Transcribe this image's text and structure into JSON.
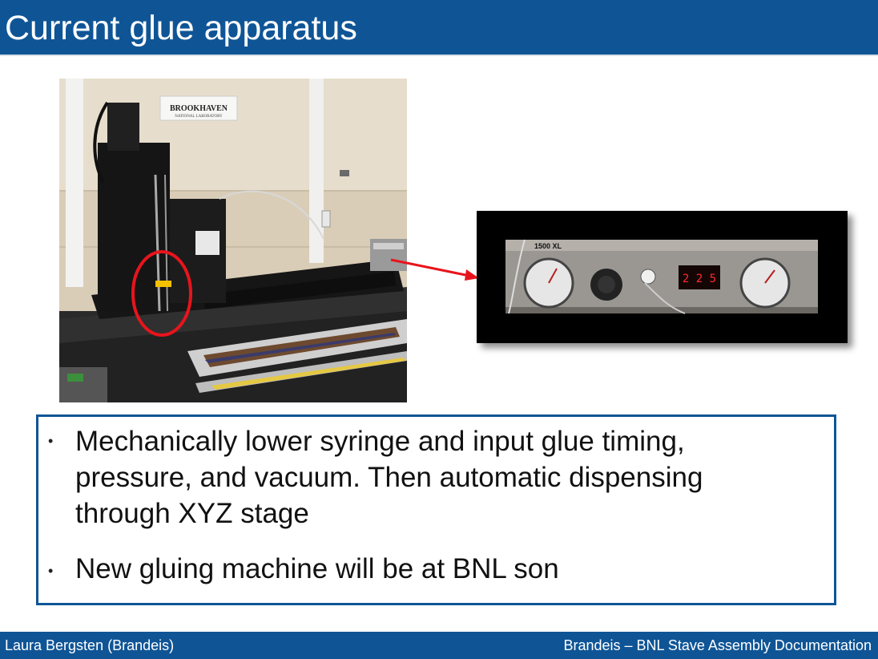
{
  "slide": {
    "title": "Current glue apparatus"
  },
  "images": {
    "main_photo_sign": "BROOKHAVEN",
    "main_photo_sign_sub": "NATIONAL LABORATORY",
    "controller_model": "1500 XL",
    "controller_display": "2 2 5"
  },
  "bullets": [
    "Mechanically lower syringe and input glue timing,",
    "pressure, and vacuum. Then automatic dispensing",
    "through XYZ stage",
    "New gluing machine will be at BNL son"
  ],
  "bullet_marker": "•",
  "footer": {
    "left": "Laura Bergsten (Brandeis)",
    "right": "Brandeis – BNL Stave Assembly Documentation"
  },
  "colors": {
    "brand_blue": "#0f5596",
    "highlight_red": "#e8141c"
  }
}
